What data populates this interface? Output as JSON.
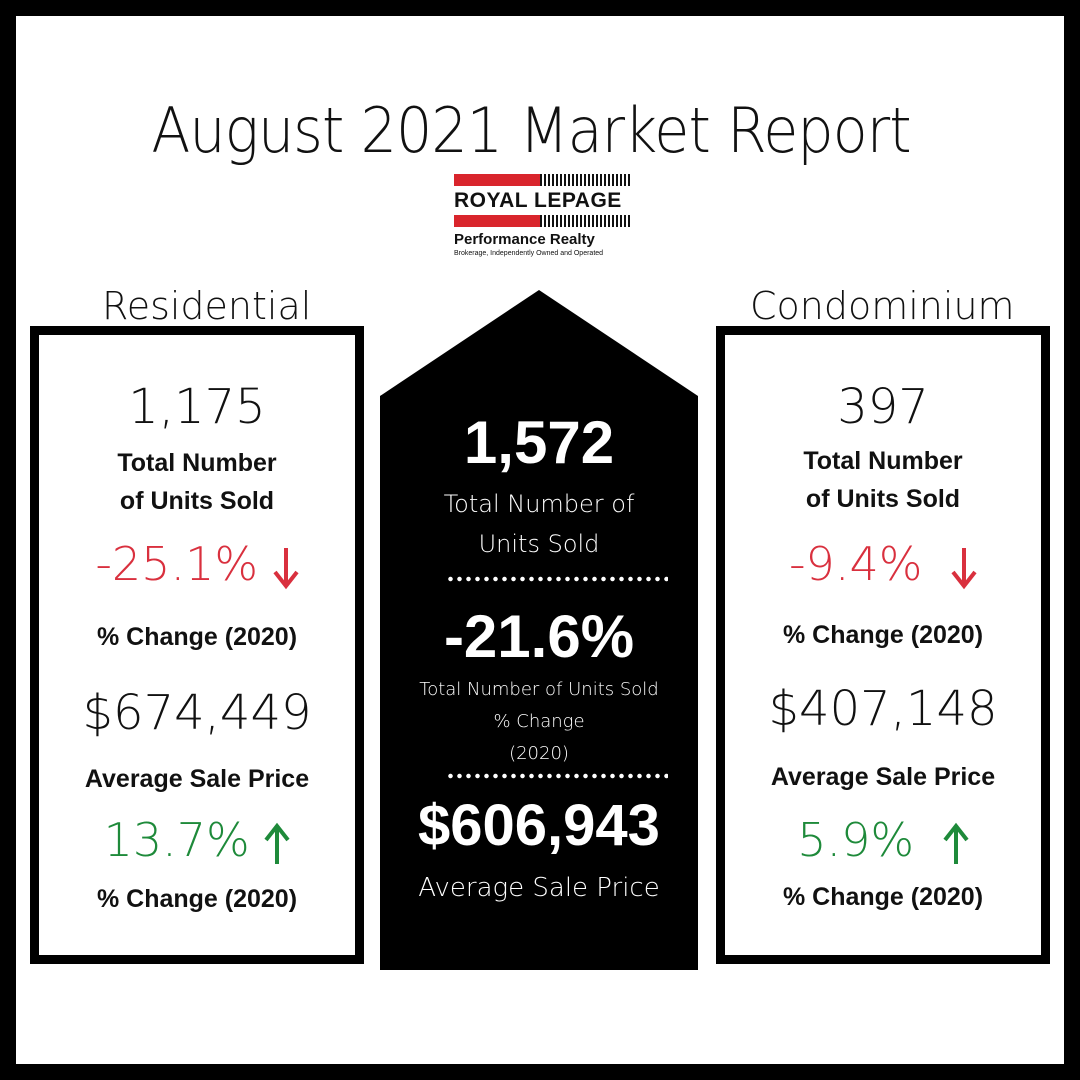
{
  "title": "August 2021 Market Report",
  "logo": {
    "brand": "ROYAL LEPAGE",
    "office": "Performance Realty",
    "tagline": "Brokerage, Independently Owned and Operated"
  },
  "colors": {
    "down": "#d9303e",
    "up": "#1e8a3a",
    "brand_red": "#d9252c"
  },
  "residential": {
    "label": "Residential",
    "units": "1,175",
    "units_label_1": "Total Number",
    "units_label_2": "of Units Sold",
    "units_change": "-25.1%",
    "units_change_icon": "arrow-down-icon",
    "change_label": "% Change (2020)",
    "price": "$674,449",
    "price_label": "Average Sale Price",
    "price_change": "13.7%",
    "price_change_icon": "arrow-up-icon",
    "price_change_label": "% Change (2020)"
  },
  "overall": {
    "units": "1,572",
    "units_label_1": "Total Number of",
    "units_label_2": "Units Sold",
    "change": "-21.6%",
    "change_label_1": "Total Number of Units Sold",
    "change_label_2": "% Change",
    "change_label_3": "(2020)",
    "price": "$606,943",
    "price_label": "Average Sale Price"
  },
  "condominium": {
    "label": "Condominium",
    "units": "397",
    "units_label_1": "Total Number",
    "units_label_2": "of Units Sold",
    "units_change": "-9.4%",
    "units_change_icon": "arrow-down-icon",
    "change_label": "% Change (2020)",
    "price": "$407,148",
    "price_label": "Average Sale Price",
    "price_change": "5.9%",
    "price_change_icon": "arrow-up-icon",
    "price_change_label": "% Change (2020)"
  }
}
